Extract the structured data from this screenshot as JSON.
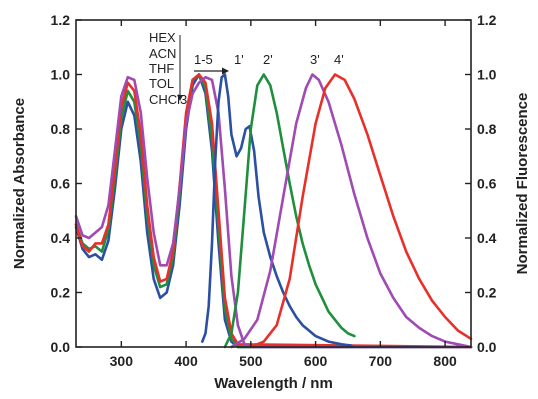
{
  "chart_data": {
    "type": "line",
    "xlabel": "Wavelength / nm",
    "ylabel": "Normalized Absorbance",
    "y2label": "Normalized Fluorescence",
    "xlim": [
      230,
      840
    ],
    "ylim": [
      0,
      1.2
    ],
    "x_ticks": [
      300,
      400,
      500,
      600,
      700,
      800
    ],
    "x_tick_labels": [
      "300",
      "400",
      "500",
      "600",
      "700",
      "800"
    ],
    "y_ticks": [
      0,
      0.2,
      0.4,
      0.6,
      0.8,
      1.0,
      1.2
    ],
    "y_tick_labels": [
      "0.0",
      "0.2",
      "0.4",
      "0.6",
      "0.8",
      "1.0",
      "1.2"
    ],
    "grid": false,
    "solvent_labels": [
      "HEX",
      "ACN",
      "THF",
      "TOL",
      "CHCl3"
    ],
    "annotations": {
      "range_label": "1-5",
      "peak_labels": [
        "1'",
        "2'",
        "3'",
        "4'"
      ]
    },
    "series": [
      {
        "group": "absorbance",
        "color": "#2a4fa3",
        "points": [
          [
            230,
            0.44
          ],
          [
            240,
            0.36
          ],
          [
            250,
            0.33
          ],
          [
            260,
            0.34
          ],
          [
            270,
            0.32
          ],
          [
            280,
            0.39
          ],
          [
            290,
            0.58
          ],
          [
            300,
            0.8
          ],
          [
            310,
            0.9
          ],
          [
            320,
            0.85
          ],
          [
            330,
            0.68
          ],
          [
            340,
            0.42
          ],
          [
            350,
            0.25
          ],
          [
            360,
            0.18
          ],
          [
            370,
            0.2
          ],
          [
            380,
            0.3
          ],
          [
            390,
            0.52
          ],
          [
            400,
            0.8
          ],
          [
            410,
            0.96
          ],
          [
            420,
            1.0
          ],
          [
            430,
            0.93
          ],
          [
            440,
            0.72
          ],
          [
            450,
            0.38
          ],
          [
            460,
            0.1
          ],
          [
            470,
            0.02
          ],
          [
            480,
            0.0
          ],
          [
            840,
            0.0
          ]
        ]
      },
      {
        "group": "absorbance",
        "color": "#1f8f3e",
        "points": [
          [
            230,
            0.45
          ],
          [
            240,
            0.38
          ],
          [
            250,
            0.36
          ],
          [
            260,
            0.37
          ],
          [
            270,
            0.35
          ],
          [
            280,
            0.43
          ],
          [
            290,
            0.62
          ],
          [
            300,
            0.84
          ],
          [
            310,
            0.94
          ],
          [
            320,
            0.9
          ],
          [
            330,
            0.74
          ],
          [
            340,
            0.48
          ],
          [
            350,
            0.3
          ],
          [
            360,
            0.22
          ],
          [
            370,
            0.23
          ],
          [
            380,
            0.33
          ],
          [
            390,
            0.56
          ],
          [
            400,
            0.84
          ],
          [
            410,
            0.98
          ],
          [
            420,
            1.0
          ],
          [
            430,
            0.95
          ],
          [
            440,
            0.76
          ],
          [
            450,
            0.44
          ],
          [
            460,
            0.14
          ],
          [
            470,
            0.03
          ],
          [
            480,
            0.0
          ],
          [
            840,
            0.0
          ]
        ]
      },
      {
        "group": "absorbance",
        "color": "#e8302a",
        "points": [
          [
            230,
            0.45
          ],
          [
            240,
            0.37
          ],
          [
            250,
            0.35
          ],
          [
            260,
            0.38
          ],
          [
            270,
            0.38
          ],
          [
            280,
            0.45
          ],
          [
            290,
            0.65
          ],
          [
            300,
            0.88
          ],
          [
            310,
            0.97
          ],
          [
            320,
            0.94
          ],
          [
            330,
            0.78
          ],
          [
            340,
            0.52
          ],
          [
            350,
            0.33
          ],
          [
            360,
            0.24
          ],
          [
            370,
            0.25
          ],
          [
            380,
            0.35
          ],
          [
            390,
            0.59
          ],
          [
            400,
            0.86
          ],
          [
            410,
            0.98
          ],
          [
            420,
            1.0
          ],
          [
            430,
            0.97
          ],
          [
            440,
            0.82
          ],
          [
            450,
            0.5
          ],
          [
            460,
            0.18
          ],
          [
            470,
            0.05
          ],
          [
            480,
            0.01
          ],
          [
            840,
            0.0
          ]
        ]
      },
      {
        "group": "absorbance",
        "color": "#a04ab3",
        "points": [
          [
            230,
            0.48
          ],
          [
            240,
            0.41
          ],
          [
            250,
            0.4
          ],
          [
            260,
            0.42
          ],
          [
            270,
            0.44
          ],
          [
            280,
            0.52
          ],
          [
            290,
            0.72
          ],
          [
            300,
            0.92
          ],
          [
            310,
            0.99
          ],
          [
            320,
            0.98
          ],
          [
            330,
            0.86
          ],
          [
            340,
            0.62
          ],
          [
            350,
            0.42
          ],
          [
            360,
            0.3
          ],
          [
            370,
            0.3
          ],
          [
            380,
            0.38
          ],
          [
            390,
            0.58
          ],
          [
            400,
            0.82
          ],
          [
            410,
            0.93
          ],
          [
            420,
            0.97
          ],
          [
            430,
            0.99
          ],
          [
            440,
            0.98
          ],
          [
            450,
            0.86
          ],
          [
            460,
            0.58
          ],
          [
            470,
            0.26
          ],
          [
            480,
            0.08
          ],
          [
            490,
            0.01
          ],
          [
            500,
            0.0
          ],
          [
            840,
            0.0
          ]
        ]
      },
      {
        "group": "fluorescence",
        "name": "1'",
        "color": "#2a4fa3",
        "points": [
          [
            425,
            0.02
          ],
          [
            430,
            0.05
          ],
          [
            435,
            0.15
          ],
          [
            440,
            0.38
          ],
          [
            445,
            0.68
          ],
          [
            450,
            0.9
          ],
          [
            455,
            0.99
          ],
          [
            460,
            1.0
          ],
          [
            465,
            0.92
          ],
          [
            470,
            0.78
          ],
          [
            478,
            0.7
          ],
          [
            485,
            0.73
          ],
          [
            492,
            0.8
          ],
          [
            498,
            0.81
          ],
          [
            505,
            0.72
          ],
          [
            512,
            0.55
          ],
          [
            520,
            0.42
          ],
          [
            530,
            0.33
          ],
          [
            540,
            0.26
          ],
          [
            550,
            0.2
          ],
          [
            560,
            0.15
          ],
          [
            570,
            0.11
          ],
          [
            580,
            0.08
          ],
          [
            590,
            0.06
          ],
          [
            600,
            0.04
          ],
          [
            620,
            0.02
          ],
          [
            640,
            0.01
          ],
          [
            655,
            0.005
          ]
        ]
      },
      {
        "group": "fluorescence",
        "name": "2'",
        "color": "#1f8f3e",
        "points": [
          [
            460,
            0.0
          ],
          [
            470,
            0.05
          ],
          [
            480,
            0.2
          ],
          [
            490,
            0.5
          ],
          [
            500,
            0.8
          ],
          [
            510,
            0.96
          ],
          [
            520,
            1.0
          ],
          [
            530,
            0.96
          ],
          [
            540,
            0.86
          ],
          [
            550,
            0.73
          ],
          [
            560,
            0.6
          ],
          [
            570,
            0.48
          ],
          [
            580,
            0.38
          ],
          [
            590,
            0.3
          ],
          [
            600,
            0.23
          ],
          [
            610,
            0.18
          ],
          [
            620,
            0.13
          ],
          [
            630,
            0.1
          ],
          [
            640,
            0.07
          ],
          [
            650,
            0.05
          ],
          [
            660,
            0.04
          ]
        ]
      },
      {
        "group": "fluorescence",
        "name": "3'",
        "color": "#a04ab3",
        "points": [
          [
            470,
            0.0
          ],
          [
            490,
            0.03
          ],
          [
            510,
            0.1
          ],
          [
            530,
            0.28
          ],
          [
            550,
            0.55
          ],
          [
            570,
            0.82
          ],
          [
            585,
            0.95
          ],
          [
            595,
            1.0
          ],
          [
            605,
            0.98
          ],
          [
            620,
            0.9
          ],
          [
            640,
            0.74
          ],
          [
            660,
            0.56
          ],
          [
            680,
            0.4
          ],
          [
            700,
            0.27
          ],
          [
            720,
            0.18
          ],
          [
            740,
            0.11
          ],
          [
            760,
            0.07
          ],
          [
            780,
            0.04
          ],
          [
            800,
            0.02
          ],
          [
            820,
            0.01
          ],
          [
            840,
            0.0
          ]
        ]
      },
      {
        "group": "fluorescence",
        "name": "4'",
        "color": "#e8302a",
        "points": [
          [
            500,
            0.0
          ],
          [
            520,
            0.02
          ],
          [
            540,
            0.08
          ],
          [
            560,
            0.25
          ],
          [
            580,
            0.55
          ],
          [
            600,
            0.82
          ],
          [
            615,
            0.95
          ],
          [
            630,
            1.0
          ],
          [
            645,
            0.98
          ],
          [
            660,
            0.91
          ],
          [
            680,
            0.78
          ],
          [
            700,
            0.63
          ],
          [
            720,
            0.48
          ],
          [
            740,
            0.35
          ],
          [
            760,
            0.25
          ],
          [
            780,
            0.17
          ],
          [
            800,
            0.11
          ],
          [
            820,
            0.06
          ],
          [
            840,
            0.03
          ]
        ]
      }
    ]
  }
}
